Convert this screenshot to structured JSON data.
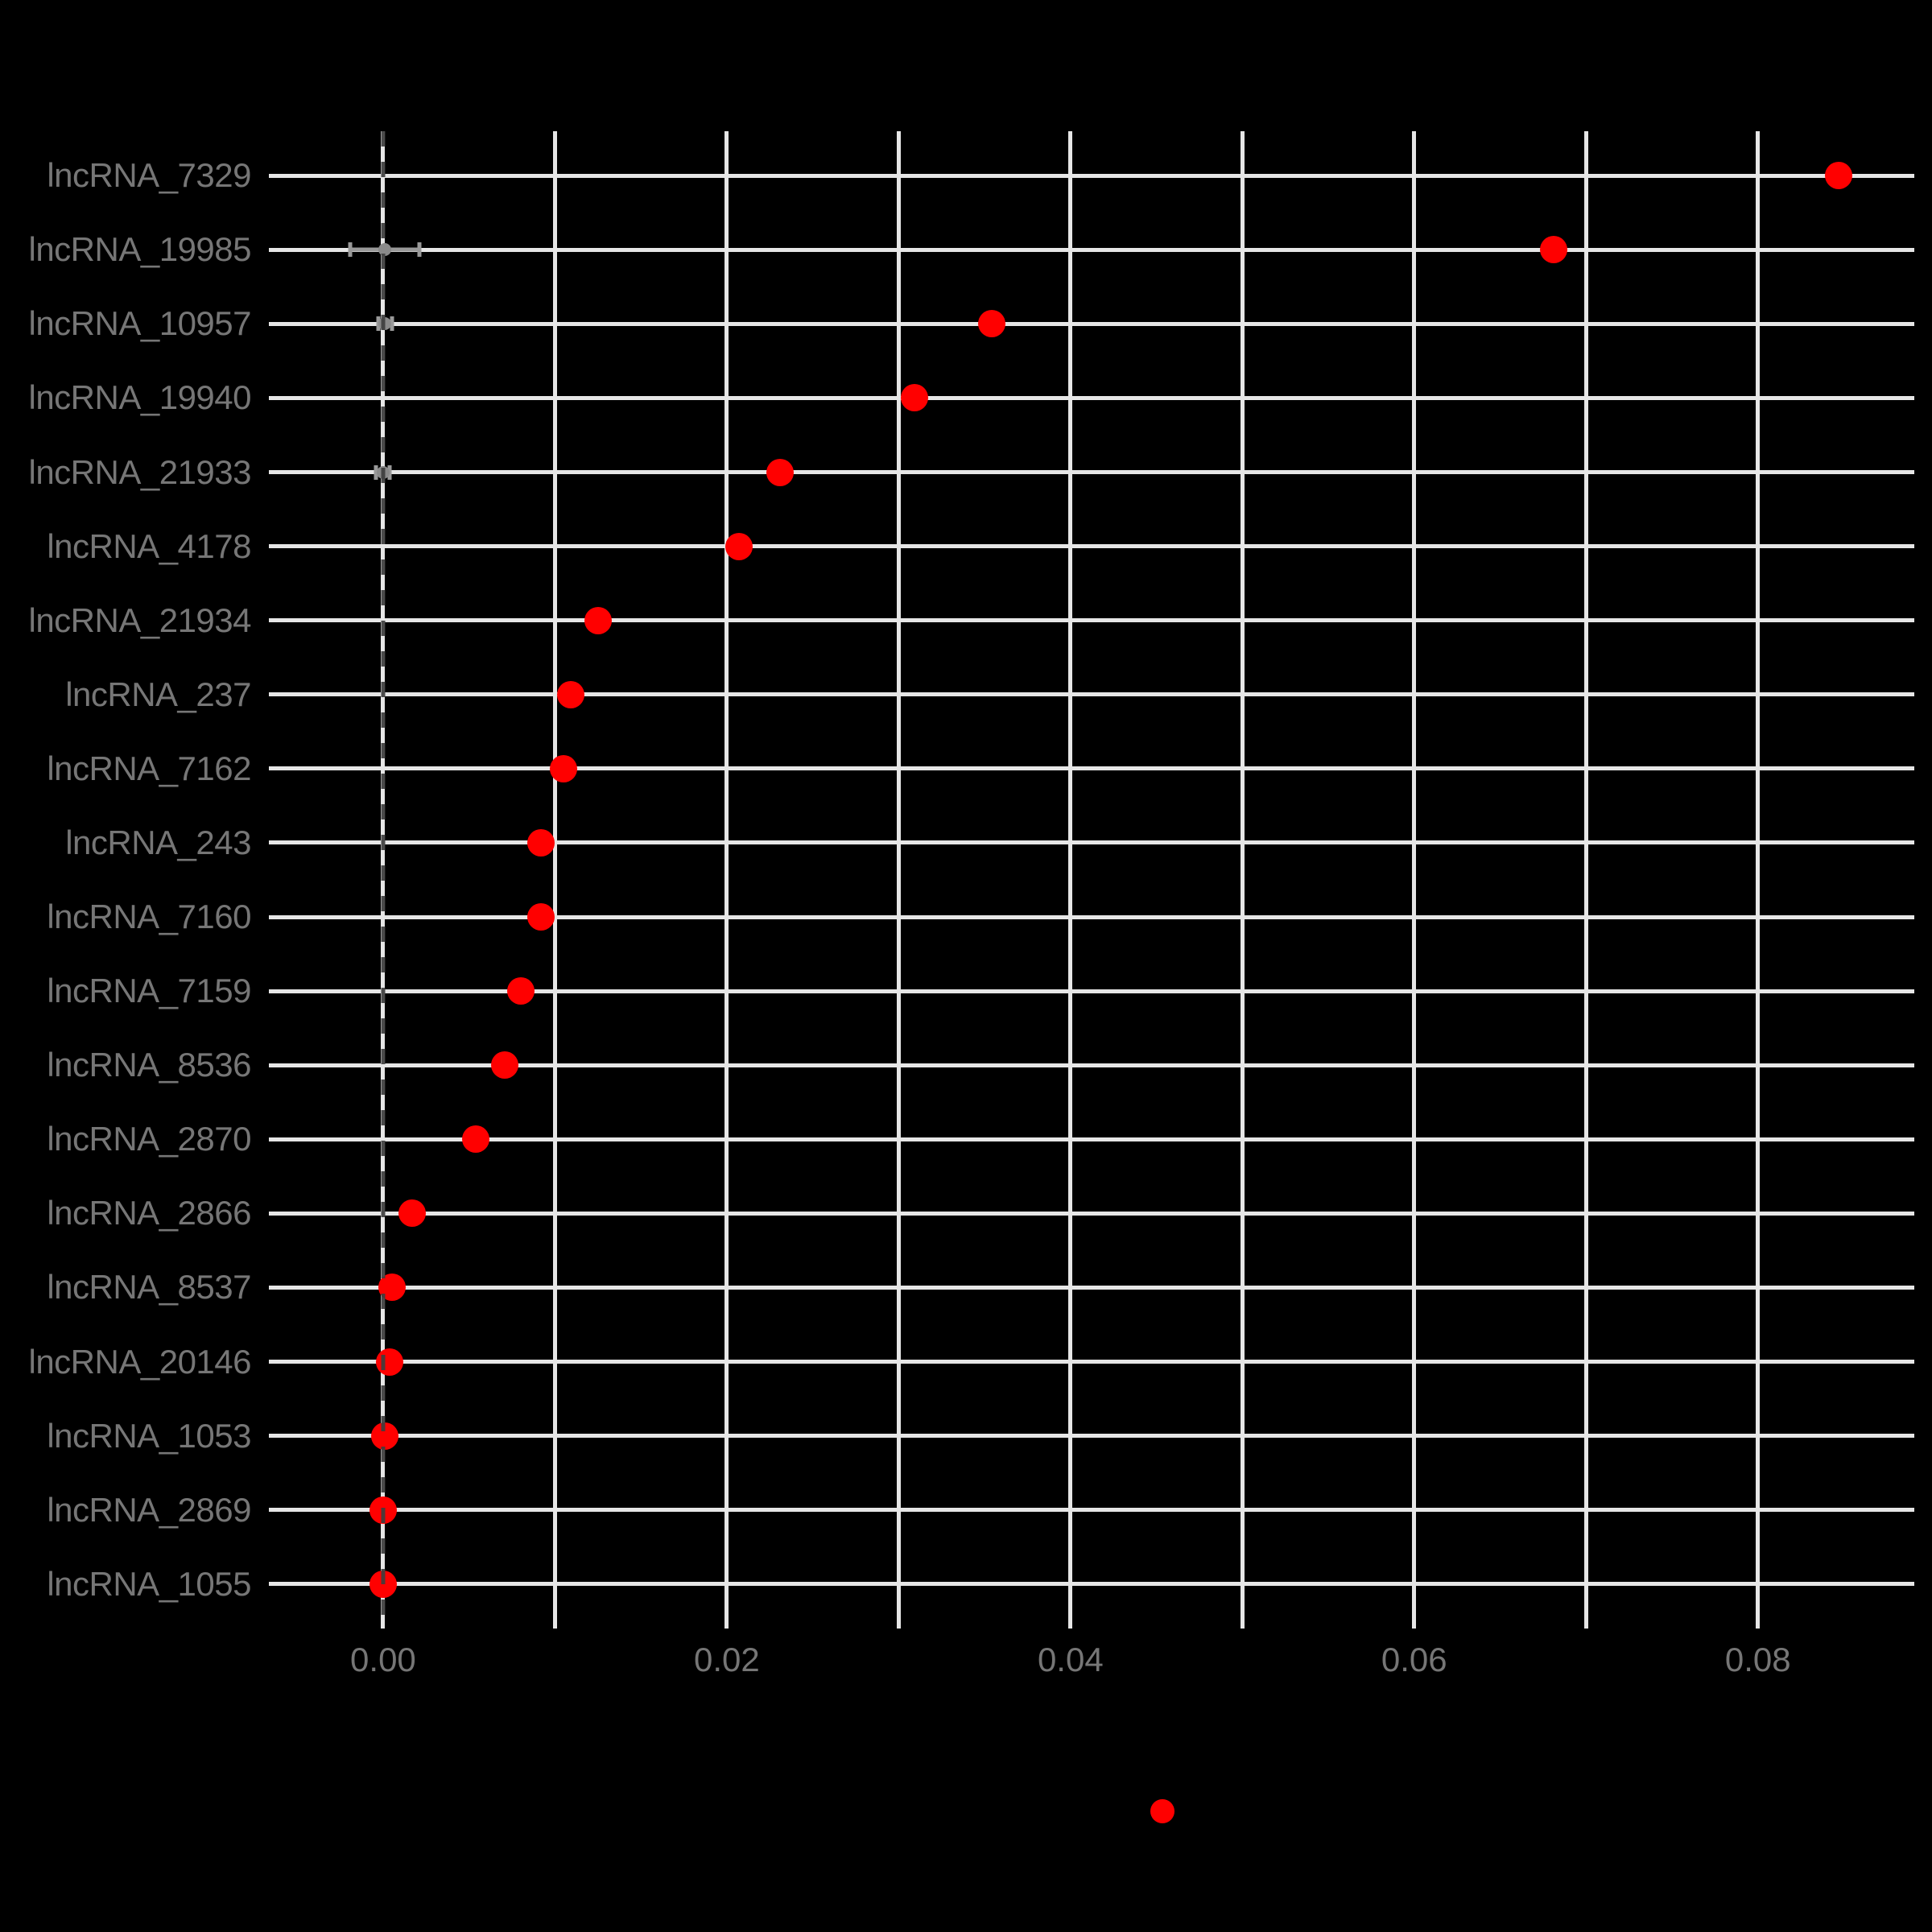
{
  "figure": {
    "background": "#000000",
    "gridline_color": "#e6e6e6",
    "tick_label_color": "#767676",
    "title": ""
  },
  "chart_data": {
    "type": "scatter",
    "orientation": "horizontal",
    "title": "",
    "xlabel": "",
    "ylabel": "",
    "grid": true,
    "x_gridline_step": 0.01,
    "xlim": [
      -0.00618,
      0.0891
    ],
    "x_ticks": [
      {
        "value": 0.0,
        "label": "0.00"
      },
      {
        "value": 0.02,
        "label": "0.02"
      },
      {
        "value": 0.04,
        "label": "0.04"
      },
      {
        "value": 0.06,
        "label": "0.06"
      },
      {
        "value": 0.08,
        "label": "0.08"
      }
    ],
    "categories": [
      "lncRNA_7329",
      "lncRNA_19985",
      "lncRNA_10957",
      "lncRNA_19940",
      "lncRNA_21933",
      "lncRNA_4178",
      "lncRNA_21934",
      "lncRNA_237",
      "lncRNA_7162",
      "lncRNA_243",
      "lncRNA_7160",
      "lncRNA_7159",
      "lncRNA_8536",
      "lncRNA_2870",
      "lncRNA_2866",
      "lncRNA_8537",
      "lncRNA_20146",
      "lncRNA_1053",
      "lncRNA_2869",
      "lncRNA_1055"
    ],
    "series": [
      {
        "name": "importance",
        "marker": "point",
        "color": "#ff0000",
        "values": [
          0.0847,
          0.0681,
          0.0354,
          0.0309,
          0.0231,
          0.0207,
          0.0125,
          0.0109,
          0.0105,
          0.0092,
          0.0092,
          0.008,
          0.0071,
          0.0054,
          0.0017,
          0.0005,
          0.0004,
          0.0001,
          0.0,
          0.0
        ]
      },
      {
        "name": "null-reference",
        "marker": "point-with-errorbar",
        "color": "#999999",
        "points": [
          {
            "category": "lncRNA_19985",
            "value": 0.0001,
            "low": -0.0019,
            "high": 0.0021
          },
          {
            "category": "lncRNA_10957",
            "value": 0.0001,
            "low": -0.0003,
            "high": 0.0005
          },
          {
            "category": "lncRNA_21933",
            "value": 0.0,
            "low": -0.0004,
            "high": 0.0004
          }
        ]
      }
    ],
    "reference_line": {
      "x": 0,
      "style": "dashed",
      "color": "#3e3e3e"
    },
    "legend": {
      "position": "bottom",
      "marker": "point",
      "marker_color": "#ff0000",
      "label": ""
    }
  }
}
